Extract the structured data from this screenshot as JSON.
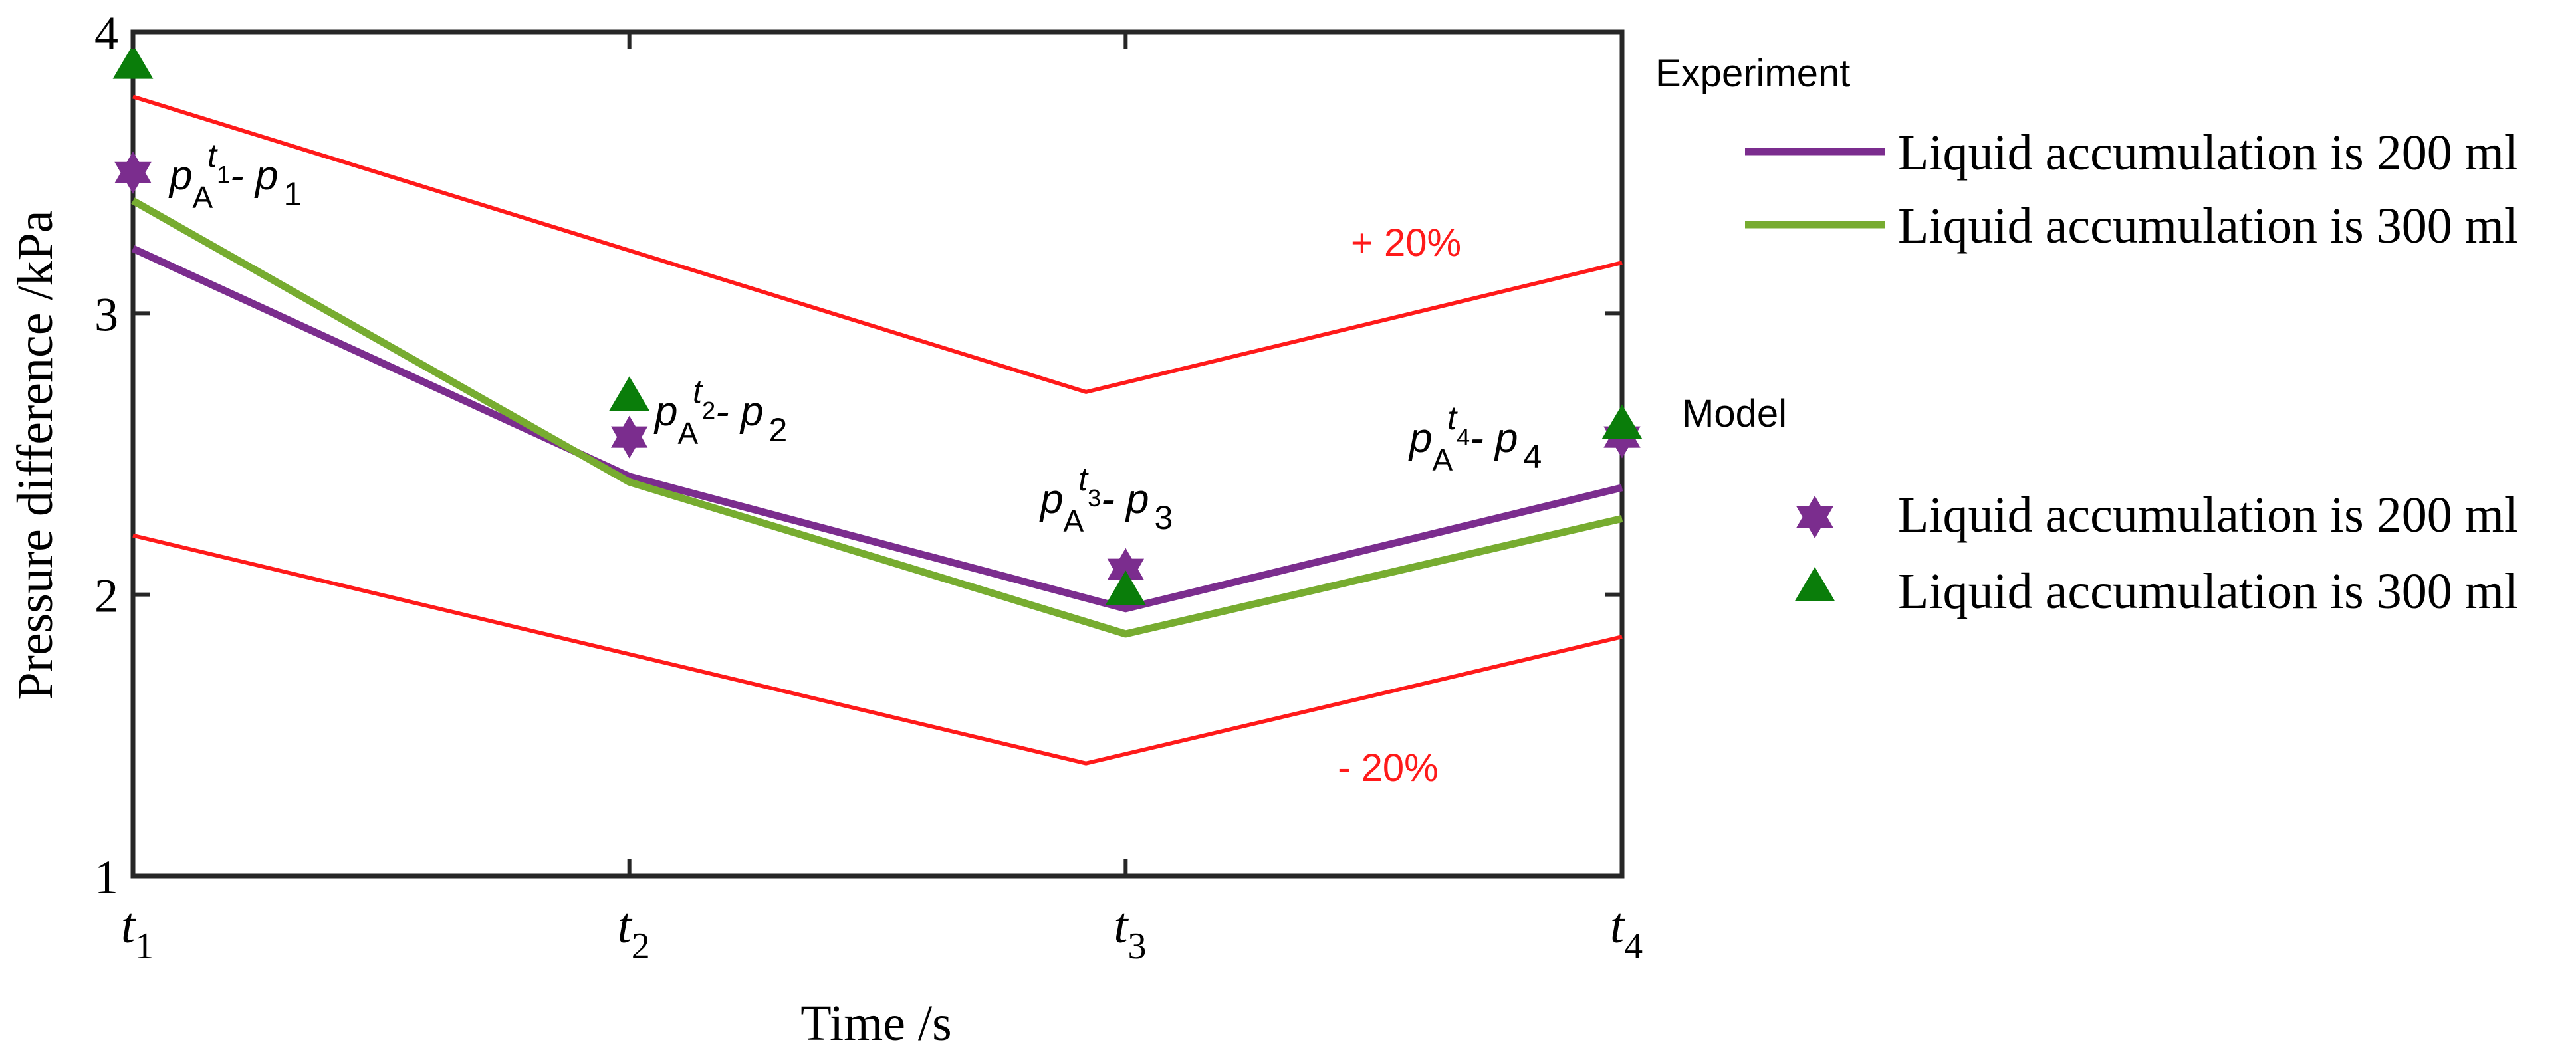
{
  "chart_data": {
    "type": "line",
    "xlabel": "Time /s",
    "ylabel": "Pressure difference /kPa",
    "ylim": [
      1,
      4
    ],
    "yticks": [
      "1",
      "2",
      "3",
      "4"
    ],
    "categories": [
      {
        "base": "t",
        "sub": "1"
      },
      {
        "base": "t",
        "sub": "2"
      },
      {
        "base": "t",
        "sub": "3"
      },
      {
        "base": "t",
        "sub": "4"
      }
    ],
    "bounds": [
      {
        "name": "+ 20%",
        "label": "+ 20%",
        "color": "#ff1a1a",
        "points": [
          [
            0,
            3.77
          ],
          [
            1.92,
            2.72
          ],
          [
            3,
            3.18
          ]
        ]
      },
      {
        "name": "- 20%",
        "label": "- 20%",
        "color": "#ff1a1a",
        "points": [
          [
            0,
            2.21
          ],
          [
            1.92,
            1.4
          ],
          [
            3,
            1.85
          ]
        ]
      }
    ],
    "experiment": {
      "title": "Experiment",
      "series": [
        {
          "name": "Liquid accumulation is 200 ml",
          "color": "#7b2d8e",
          "values": [
            3.23,
            2.42,
            1.95,
            2.38
          ]
        },
        {
          "name": "Liquid accumulation is 300 ml",
          "color": "#77ac30",
          "values": [
            3.4,
            2.4,
            1.86,
            2.27
          ]
        }
      ]
    },
    "model": {
      "title": "Model",
      "series": [
        {
          "name": "Liquid accumulation is 200 ml",
          "color": "#7b2d8e",
          "marker": "hexagram",
          "values": [
            3.5,
            2.56,
            2.09,
            2.56
          ]
        },
        {
          "name": "Liquid accumulation is 300 ml",
          "color": "#0a7d0a",
          "marker": "triangle",
          "values": [
            3.88,
            2.7,
            2.01,
            2.6
          ]
        }
      ]
    },
    "annotations": [
      {
        "p": "p",
        "sub": "A",
        "sup_t": "t",
        "sup_n": "1",
        "minus": "- p",
        "idx": "1"
      },
      {
        "p": "p",
        "sub": "A",
        "sup_t": "t",
        "sup_n": "2",
        "minus": "- p",
        "idx": "2"
      },
      {
        "p": "p",
        "sub": "A",
        "sup_t": "t",
        "sup_n": "3",
        "minus": "- p",
        "idx": "3"
      },
      {
        "p": "p",
        "sub": "A",
        "sup_t": "t",
        "sup_n": "4",
        "minus": "- p",
        "idx": "4"
      }
    ]
  }
}
